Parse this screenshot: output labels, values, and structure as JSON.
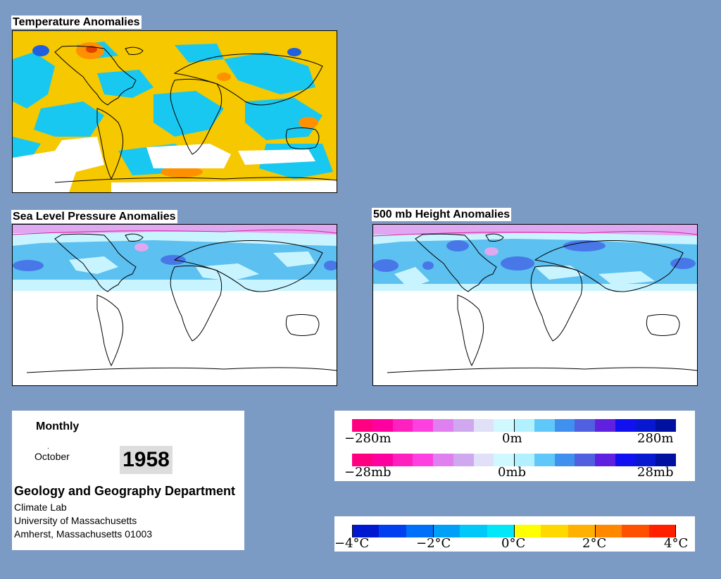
{
  "panels": {
    "temperature": {
      "title": "Temperature Anomalies"
    },
    "slp": {
      "title": "Sea Level Pressure Anomalies"
    },
    "height": {
      "title": "500 mb Height Anomalies"
    }
  },
  "info": {
    "period": "Monthly",
    "dot": ".",
    "month": "October",
    "year": "1958",
    "department": "Geology and Geography Department",
    "lab": "Climate Lab",
    "university": "University of Massachusetts",
    "address": "Amherst, Massachusetts 01003"
  },
  "legend_height": {
    "colors": [
      "#ff0080",
      "#ff00a0",
      "#ff20c0",
      "#ff40e0",
      "#e080f0",
      "#d0a8f0",
      "#e0e0f8",
      "#d0f8ff",
      "#b0f0ff",
      "#60c8f8",
      "#4090f0",
      "#5060e0",
      "#6020e0",
      "#1010f0",
      "#0818d0",
      "#0010a0"
    ],
    "left": "−280m",
    "mid": "0m",
    "right": "280m"
  },
  "legend_pressure": {
    "colors": [
      "#ff0080",
      "#ff00a0",
      "#ff20c0",
      "#ff40e0",
      "#e080f0",
      "#d0a8f0",
      "#e0e0f8",
      "#d0f8ff",
      "#b0f0ff",
      "#60c8f8",
      "#4090f0",
      "#5060e0",
      "#6020e0",
      "#1010f0",
      "#0818d0",
      "#0010a0"
    ],
    "left": "−28mb",
    "mid": "0mb",
    "right": "28mb"
  },
  "legend_temperature": {
    "colors": [
      "#0018d0",
      "#0040f0",
      "#0070f8",
      "#00a0f8",
      "#00c8f8",
      "#00e8f8",
      "#ffff00",
      "#ffd800",
      "#ffb000",
      "#ff8800",
      "#ff5000",
      "#ff2000"
    ],
    "labels": [
      "−4°C",
      "−2°C",
      "0°C",
      "2°C",
      "4°C"
    ]
  }
}
